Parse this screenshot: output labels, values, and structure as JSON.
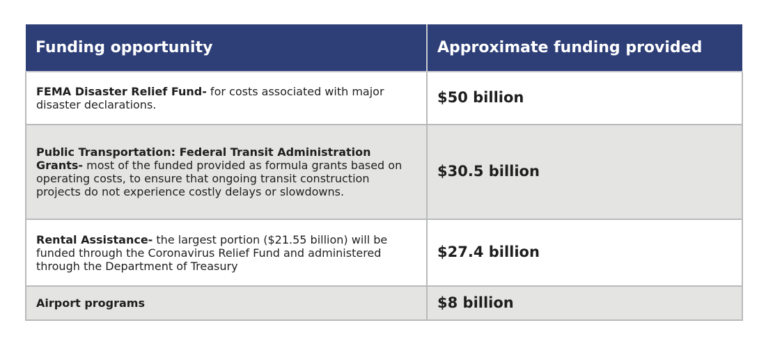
{
  "table": {
    "headers": {
      "col1": "Funding opportunity",
      "col2": "Approximate funding provided"
    },
    "rows": [
      {
        "title": "FEMA Disaster Relief Fund-",
        "description": " for costs associated with major disaster declarations.",
        "amount": "$50 billion"
      },
      {
        "title": "Public Transportation: Federal Transit Administration Grants-",
        "description": " most of the funded provided as formula grants based on operating costs, to ensure that ongoing transit construction projects do not experience costly delays or slowdowns.",
        "amount": "$30.5 billion"
      },
      {
        "title": "Rental Assistance-",
        "description": " the largest portion ($21.55 billion) will be funded through the Coronavirus Relief Fund and administered through the Department of Treasury",
        "amount": "$27.4 billion"
      },
      {
        "title": "Airport programs",
        "description": "",
        "amount": "$8 billion"
      }
    ]
  },
  "colors": {
    "header_bg": "#2e3f78",
    "header_text": "#ffffff",
    "alt_row_bg": "#e4e4e2",
    "border": "#b8b9bb"
  }
}
